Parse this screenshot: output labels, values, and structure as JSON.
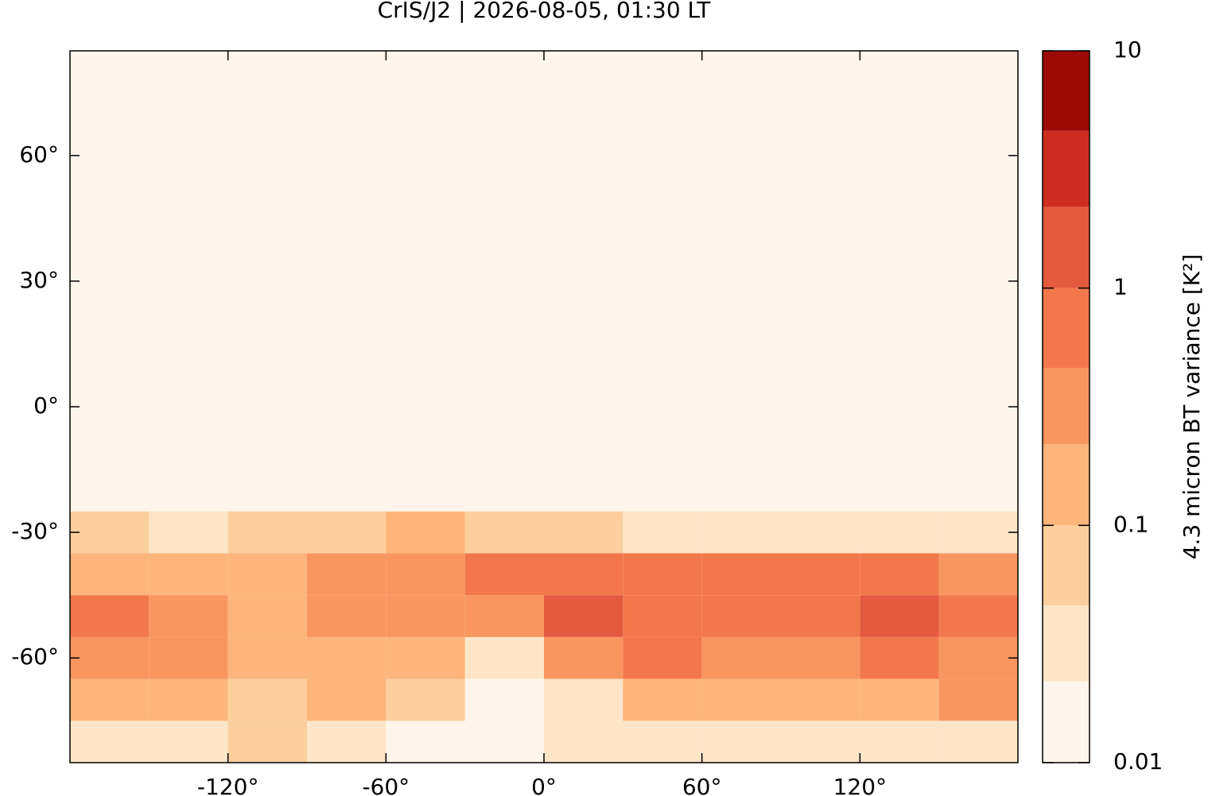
{
  "chart_data": {
    "type": "heatmap",
    "title": "CrIS/J2 | 2026-08-05, 01:30 LT",
    "xlim": [
      -180,
      180
    ],
    "ylim": [
      -85,
      85
    ],
    "xticks": [
      {
        "value": -120,
        "label": "-120°"
      },
      {
        "value": -60,
        "label": "-60°"
      },
      {
        "value": 0,
        "label": "0°"
      },
      {
        "value": 60,
        "label": "60°"
      },
      {
        "value": 120,
        "label": "120°"
      }
    ],
    "yticks": [
      {
        "value": 60,
        "label": "60°"
      },
      {
        "value": 30,
        "label": "30°"
      },
      {
        "value": 0,
        "label": "0°"
      },
      {
        "value": -30,
        "label": "-30°"
      },
      {
        "value": -60,
        "label": "-60°"
      }
    ],
    "x_edges": [
      -180,
      -150,
      -120,
      -90,
      -60,
      -30,
      0,
      30,
      60,
      90,
      120,
      150,
      180
    ],
    "y_edges": [
      -85,
      -75,
      -65,
      -55,
      -45,
      -35,
      -25,
      85
    ],
    "z": [
      [
        0.04,
        0.04,
        0.05,
        0.03,
        0.02,
        0.02,
        0.03,
        0.03,
        0.04,
        0.04,
        0.04,
        0.04
      ],
      [
        0.15,
        0.1,
        0.08,
        0.1,
        0.05,
        0.02,
        0.04,
        0.1,
        0.15,
        0.12,
        0.2,
        0.3
      ],
      [
        0.4,
        0.3,
        0.15,
        0.15,
        0.1,
        0.03,
        0.3,
        0.5,
        0.4,
        0.4,
        0.6,
        0.4
      ],
      [
        0.5,
        0.3,
        0.2,
        0.3,
        0.3,
        0.4,
        1.2,
        0.9,
        0.8,
        0.9,
        1.0,
        0.5
      ],
      [
        0.2,
        0.15,
        0.15,
        0.3,
        0.4,
        0.5,
        0.8,
        0.5,
        0.5,
        0.6,
        0.9,
        0.3
      ],
      [
        0.05,
        0.04,
        0.05,
        0.08,
        0.1,
        0.05,
        0.06,
        0.04,
        0.04,
        0.04,
        0.04,
        0.04
      ],
      [
        0.015,
        0.015,
        0.015,
        0.015,
        0.015,
        0.015,
        0.015,
        0.015,
        0.015,
        0.015,
        0.015,
        0.015
      ]
    ],
    "colorbar": {
      "label": "4.3 micron BT variance [K²]",
      "scale": "log",
      "lim": [
        0.01,
        10
      ],
      "ticks": [
        0.01,
        0.1,
        1,
        10
      ],
      "levels": [
        0.01,
        0.022,
        0.046,
        0.1,
        0.22,
        0.46,
        1,
        2.2,
        4.6,
        10
      ],
      "colors": [
        "#fff5eb",
        "#fde5c8",
        "#fdcf9d",
        "#fcb57a",
        "#f99660",
        "#f2784b",
        "#e35a3e",
        "#cd2d20",
        "#9c0a05"
      ]
    }
  }
}
